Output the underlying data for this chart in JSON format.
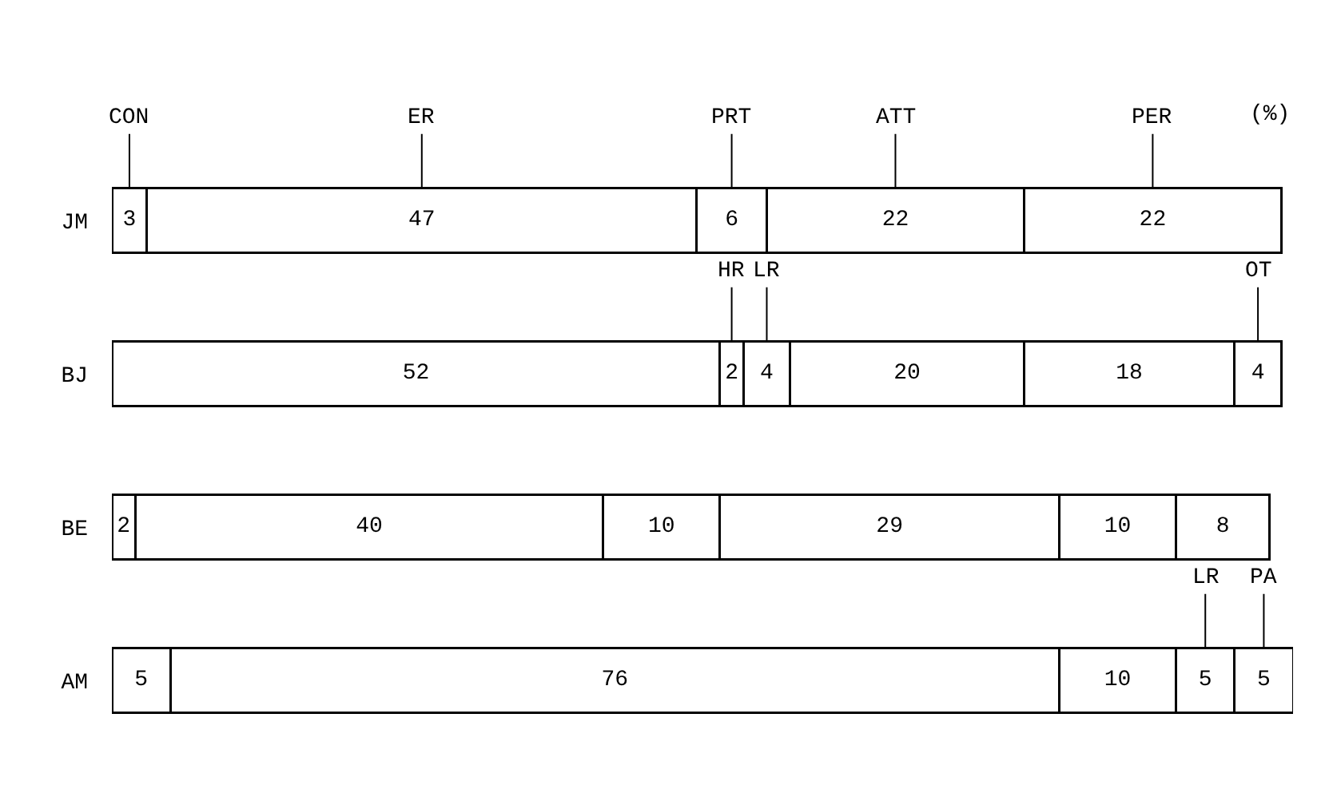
{
  "chart_data": {
    "type": "bar",
    "orientation": "horizontal",
    "stacked": true,
    "data_labels": true,
    "legend": false,
    "categories": [
      "JM",
      "BJ",
      "BE",
      "AM"
    ],
    "series": [
      {
        "name": "CON",
        "color": "#ffffff",
        "values": [
          3,
          null,
          2,
          5
        ]
      },
      {
        "name": "ER",
        "color": "#ffffff",
        "values": [
          47,
          52,
          40,
          76
        ]
      },
      {
        "name": "PRT",
        "color": "#ffffff",
        "values": [
          6,
          null,
          10,
          10
        ]
      },
      {
        "name": "HR",
        "color": "#ffffff",
        "values": [
          null,
          2,
          null,
          null
        ]
      },
      {
        "name": "LR",
        "color": "#ffffff",
        "values": [
          null,
          4,
          null,
          null
        ]
      },
      {
        "name": "ATT",
        "color": "#ffffff",
        "values": [
          22,
          20,
          29,
          null
        ]
      },
      {
        "name": "PER",
        "color": "#ffffff",
        "values": [
          22,
          18,
          10,
          null
        ]
      },
      {
        "name": "LR",
        "color": "#ffffff",
        "values": [
          null,
          null,
          null,
          5
        ]
      },
      {
        "name": "PA",
        "color": "#ffffff",
        "values": [
          null,
          null,
          null,
          5
        ]
      },
      {
        "name": "OT",
        "color": "#ffffff",
        "values": [
          null,
          4,
          8,
          null
        ]
      }
    ],
    "annotations": [
      "(%)"
    ]
  }
}
